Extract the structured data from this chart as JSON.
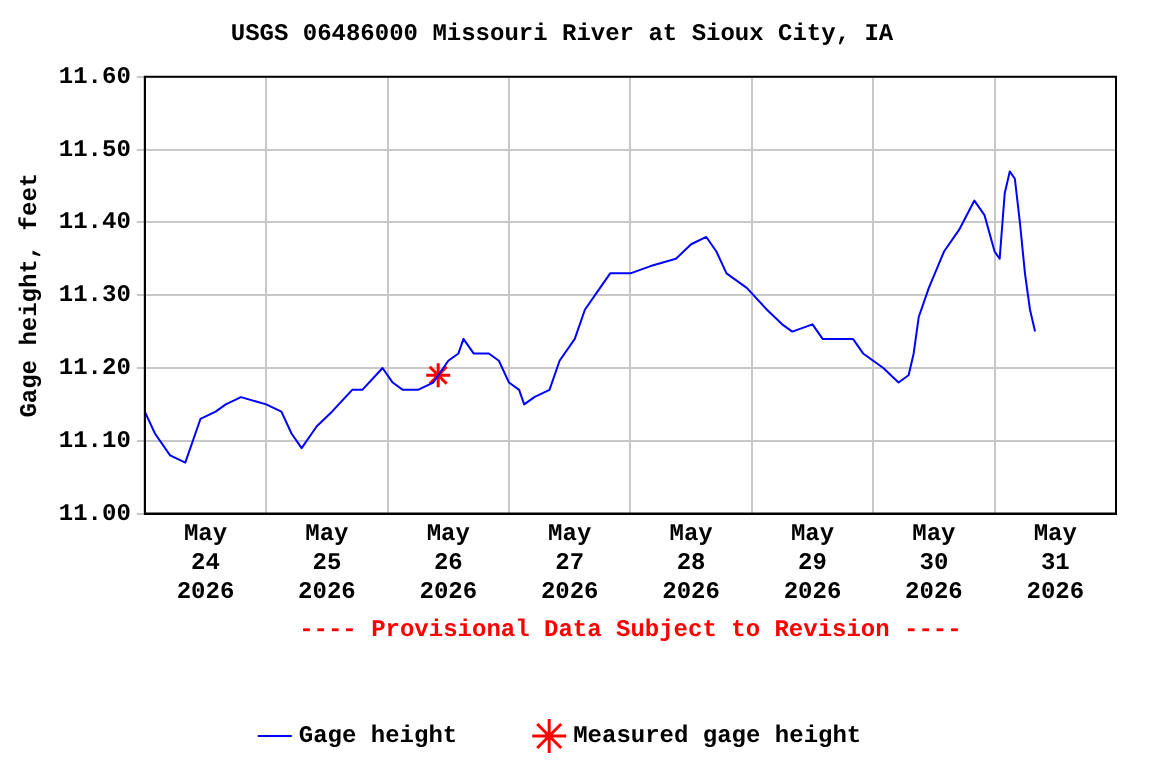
{
  "chart_data": {
    "type": "line",
    "title": "USGS 06486000 Missouri River at Sioux City, IA",
    "ylabel": "Gage height, feet",
    "annotations": [
      "---- Provisional Data Subject to Revision ----"
    ],
    "xlim": [
      "2026-05-24T00:00",
      "2026-06-01T00:00"
    ],
    "xticks": [
      {
        "value": "2026-05-24T12:00",
        "label": "May 24 2026"
      },
      {
        "value": "2026-05-25T00:00",
        "label": null
      },
      {
        "value": "2026-05-25T12:00",
        "label": "May 25 2026"
      },
      {
        "value": "2026-05-26T00:00",
        "label": null
      },
      {
        "value": "2026-05-26T12:00",
        "label": "May 26 2026"
      },
      {
        "value": "2026-05-27T00:00",
        "label": null
      },
      {
        "value": "2026-05-27T12:00",
        "label": "May 27 2026"
      },
      {
        "value": "2026-05-28T00:00",
        "label": null
      },
      {
        "value": "2026-05-28T12:00",
        "label": "May 28 2026"
      },
      {
        "value": "2026-05-29T00:00",
        "label": null
      },
      {
        "value": "2026-05-29T12:00",
        "label": "May 29 2026"
      },
      {
        "value": "2026-05-30T00:00",
        "label": null
      },
      {
        "value": "2026-05-30T12:00",
        "label": "May 30 2026"
      },
      {
        "value": "2026-05-31T00:00",
        "label": null
      },
      {
        "value": "2026-05-31T12:00",
        "label": "May 31 2026"
      }
    ],
    "ylim": [
      11.0,
      11.6
    ],
    "yticks": [
      {
        "value": 11.0,
        "label": "11.00"
      },
      {
        "value": 11.1,
        "label": "11.10"
      },
      {
        "value": 11.2,
        "label": "11.20"
      },
      {
        "value": 11.3,
        "label": "11.30"
      },
      {
        "value": 11.4,
        "label": "11.40"
      },
      {
        "value": 11.5,
        "label": "11.50"
      },
      {
        "value": 11.6,
        "label": "11.60"
      }
    ],
    "grid": true,
    "legend": "bottom",
    "series": [
      {
        "name": "Gage height",
        "color": "#0000ff",
        "marker": "none",
        "line_style": "solid",
        "x": [
          "2026-05-24T00:00",
          "2026-05-24T02:00",
          "2026-05-24T05:00",
          "2026-05-24T08:00",
          "2026-05-24T11:00",
          "2026-05-24T14:00",
          "2026-05-24T16:00",
          "2026-05-24T19:00",
          "2026-05-25T00:00",
          "2026-05-25T03:00",
          "2026-05-25T05:00",
          "2026-05-25T07:00",
          "2026-05-25T10:00",
          "2026-05-25T13:00",
          "2026-05-25T17:00",
          "2026-05-25T19:00",
          "2026-05-25T23:00",
          "2026-05-26T01:00",
          "2026-05-26T03:00",
          "2026-05-26T06:00",
          "2026-05-26T09:00",
          "2026-05-26T12:00",
          "2026-05-26T14:00",
          "2026-05-26T15:00",
          "2026-05-26T17:00",
          "2026-05-26T20:00",
          "2026-05-26T22:00",
          "2026-05-27T00:00",
          "2026-05-27T02:00",
          "2026-05-27T03:00",
          "2026-05-27T05:00",
          "2026-05-27T08:00",
          "2026-05-27T10:00",
          "2026-05-27T13:00",
          "2026-05-27T15:00",
          "2026-05-27T18:00",
          "2026-05-27T20:00",
          "2026-05-28T00:00",
          "2026-05-28T04:00",
          "2026-05-28T09:00",
          "2026-05-28T12:00",
          "2026-05-28T15:00",
          "2026-05-28T17:00",
          "2026-05-28T19:00",
          "2026-05-28T23:00",
          "2026-05-29T03:00",
          "2026-05-29T06:00",
          "2026-05-29T08:00",
          "2026-05-29T12:00",
          "2026-05-29T14:00",
          "2026-05-29T20:00",
          "2026-05-29T22:00",
          "2026-05-30T00:00",
          "2026-05-30T02:00",
          "2026-05-30T05:00",
          "2026-05-30T07:00",
          "2026-05-30T08:00",
          "2026-05-30T09:00",
          "2026-05-30T11:00",
          "2026-05-30T14:00",
          "2026-05-30T17:00",
          "2026-05-30T20:00",
          "2026-05-30T22:00",
          "2026-05-31T00:00",
          "2026-05-31T01:00",
          "2026-05-31T02:00",
          "2026-05-31T03:00",
          "2026-05-31T04:00",
          "2026-05-31T05:00",
          "2026-05-31T06:00",
          "2026-05-31T07:00",
          "2026-05-31T08:00"
        ],
        "values": [
          11.14,
          11.11,
          11.08,
          11.07,
          11.13,
          11.14,
          11.15,
          11.16,
          11.15,
          11.14,
          11.11,
          11.09,
          11.12,
          11.14,
          11.17,
          11.17,
          11.2,
          11.18,
          11.17,
          11.17,
          11.18,
          11.21,
          11.22,
          11.24,
          11.22,
          11.22,
          11.21,
          11.18,
          11.17,
          11.15,
          11.16,
          11.17,
          11.21,
          11.24,
          11.28,
          11.31,
          11.33,
          11.33,
          11.34,
          11.35,
          11.37,
          11.38,
          11.36,
          11.33,
          11.31,
          11.28,
          11.26,
          11.25,
          11.26,
          11.24,
          11.24,
          11.22,
          11.21,
          11.2,
          11.18,
          11.19,
          11.22,
          11.27,
          11.31,
          11.36,
          11.39,
          11.43,
          11.41,
          11.36,
          11.35,
          11.44,
          11.47,
          11.46,
          11.4,
          11.33,
          11.28,
          11.25
        ]
      },
      {
        "name": "Measured gage height",
        "type": "scatter",
        "color": "#ff0000",
        "marker": "cross",
        "x": [
          "2026-05-26T10:00"
        ],
        "values": [
          11.19
        ]
      }
    ]
  }
}
